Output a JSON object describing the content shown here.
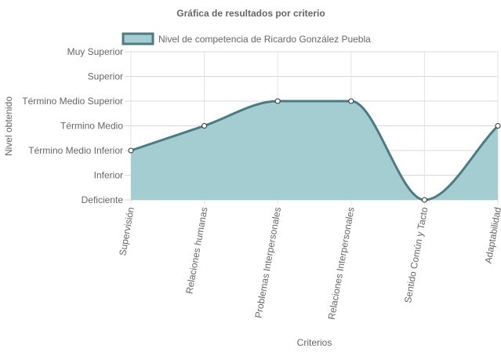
{
  "chart_data": {
    "type": "area",
    "title": "Gráfica de resultados por criterio",
    "xlabel": "Criterios",
    "ylabel": "Nivel obtenido",
    "y_levels": [
      "Deficiente",
      "Inferior",
      "Término Medio Inferior",
      "Término Medio",
      "Término Medio Superior",
      "Superior",
      "Muy Superior"
    ],
    "categories": [
      "Supervisión",
      "Relaciones humanas",
      "Problemas Interpersonales",
      "Relaciones Interpersonales",
      "Sentido Común y Tacto",
      "Adaptabilidad"
    ],
    "series": [
      {
        "name": "Nivel de competencia de Ricardo González Puebla",
        "values": [
          2,
          3,
          4,
          4,
          0,
          3
        ],
        "line_color": "#4e7a82",
        "fill_color": "#a3cdd0"
      }
    ],
    "ylim": [
      0,
      6
    ],
    "grid": true,
    "legend_position": "top"
  }
}
